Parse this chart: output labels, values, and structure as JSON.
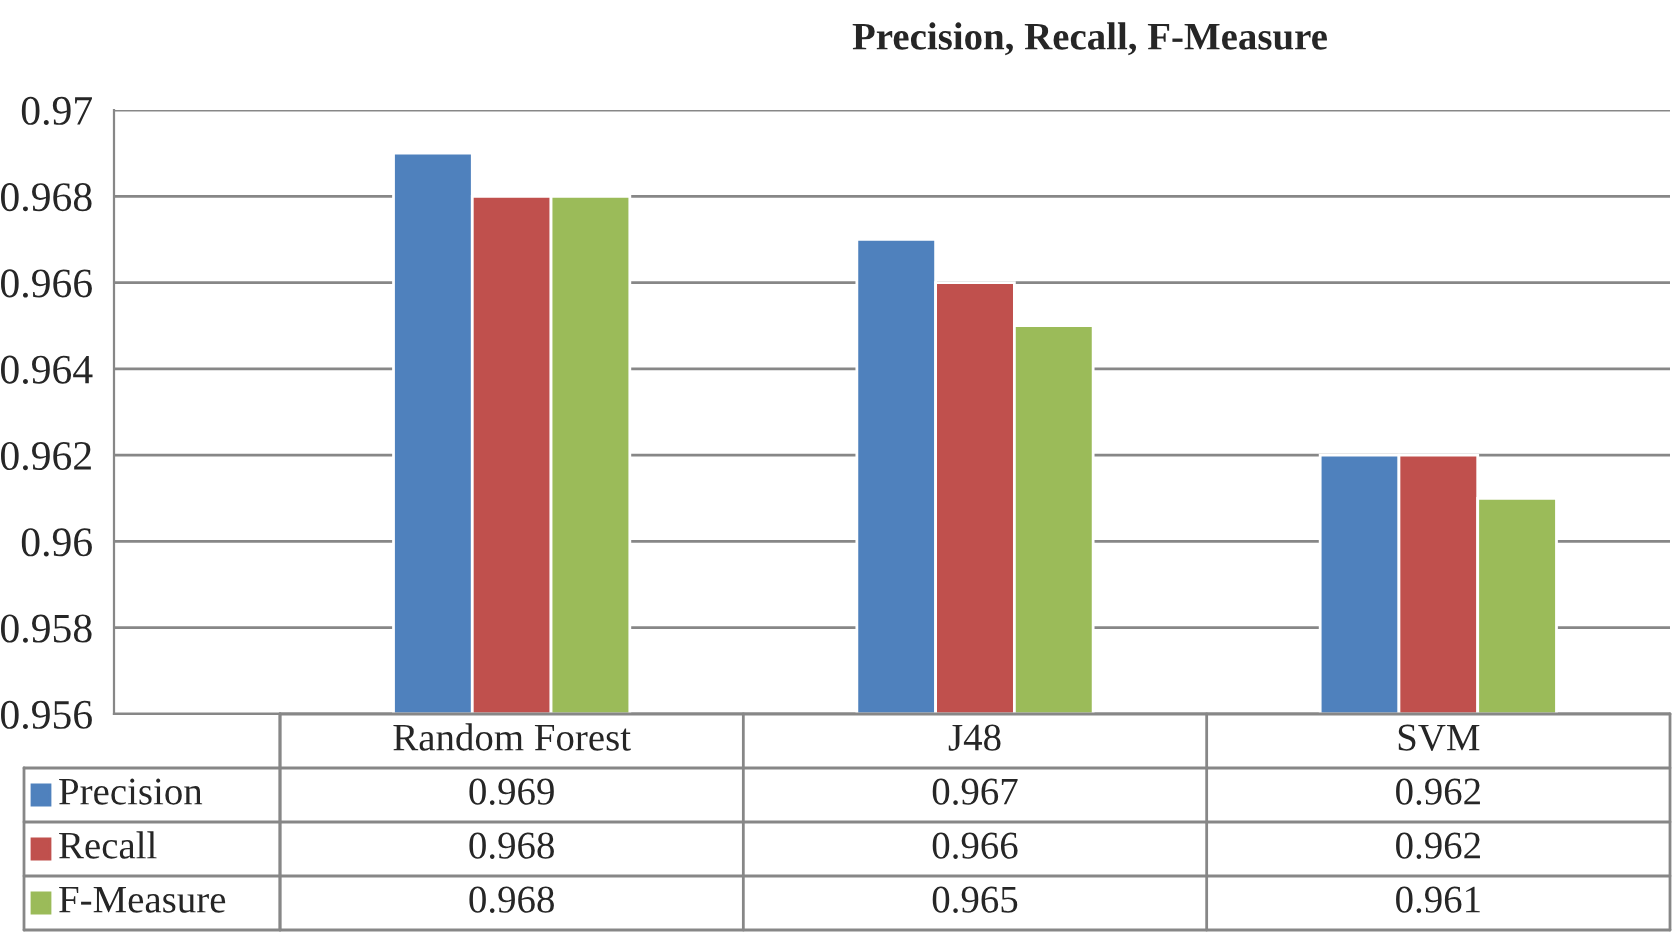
{
  "chart_data": {
    "type": "bar",
    "title": "Precision, Recall, F-Measure",
    "categories": [
      "Random Forest",
      "J48",
      "SVM"
    ],
    "series": [
      {
        "name": "Precision",
        "color": "#4f81bd",
        "values": [
          0.969,
          0.967,
          0.962
        ]
      },
      {
        "name": "Recall",
        "color": "#c0504d",
        "values": [
          0.968,
          0.966,
          0.962
        ]
      },
      {
        "name": "F-Measure",
        "color": "#9bbb59",
        "values": [
          0.968,
          0.965,
          0.961
        ]
      }
    ],
    "ylim": [
      0.956,
      0.97
    ],
    "yticks": [
      0.956,
      0.958,
      0.96,
      0.962,
      0.964,
      0.966,
      0.968,
      0.97
    ],
    "grid": "y",
    "legend": "bottom",
    "data_labels": true
  }
}
